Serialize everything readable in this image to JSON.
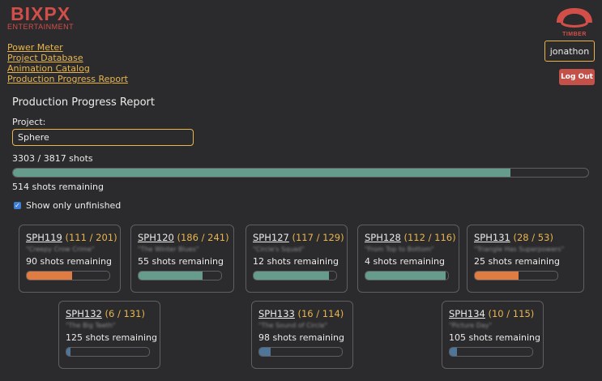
{
  "header": {
    "logo_main": "BIXPX",
    "logo_sub": "ENTERTAINMENT",
    "timber_label": "TIMBER",
    "username": "jonathon",
    "logout_label": "Log Out"
  },
  "nav": {
    "items": [
      {
        "label": "Power Meter"
      },
      {
        "label": "Project Database"
      },
      {
        "label": "Animation Catalog"
      },
      {
        "label": "Production Progress Report"
      }
    ]
  },
  "report": {
    "title": "Production Progress Report",
    "project_label": "Project:",
    "project_value": "Sphere",
    "shots_done": 3303,
    "shots_total": 3817,
    "counts_text": "3303 / 3817 shots",
    "remaining_text": "514 shots remaining",
    "show_unfinished_label": "Show only unfinished",
    "show_unfinished_checked": true
  },
  "colors": {
    "total_fill": "#659c8b",
    "orange": "#e07b41",
    "teal": "#659c8b",
    "blue": "#4f7699",
    "accent": "#e9b64e",
    "logout": "#c4504a"
  },
  "cards": [
    {
      "id": "SPH119",
      "count": "(111 / 201)",
      "subtitle": "\"Creepy Crow Crime\"",
      "remaining": "90 shots remaining",
      "progress": 0.552,
      "color": "#e07b41"
    },
    {
      "id": "SPH120",
      "count": "(186 / 241)",
      "subtitle": "\"The Winter Blues\"",
      "remaining": "55 shots remaining",
      "progress": 0.772,
      "color": "#659c8b"
    },
    {
      "id": "SPH127",
      "count": "(117 / 129)",
      "subtitle": "\"Circle's Squad\"",
      "remaining": "12 shots remaining",
      "progress": 0.907,
      "color": "#659c8b"
    },
    {
      "id": "SPH128",
      "count": "(112 / 116)",
      "subtitle": "\"From Top to Bottom\"",
      "remaining": "4 shots remaining",
      "progress": 0.966,
      "color": "#659c8b"
    },
    {
      "id": "SPH131",
      "count": "(28 / 53)",
      "subtitle": "\"Triangle Has Superpowers\"",
      "remaining": "25 shots remaining",
      "progress": 0.528,
      "color": "#e07b41"
    },
    {
      "id": "SPH132",
      "count": "(6 / 131)",
      "subtitle": "\"The Big Teeth\"",
      "remaining": "125 shots remaining",
      "progress": 0.046,
      "color": "#4f7699"
    },
    {
      "id": "SPH133",
      "count": "(16 / 114)",
      "subtitle": "\"The Sound of Circle\"",
      "remaining": "98 shots remaining",
      "progress": 0.14,
      "color": "#4f7699"
    },
    {
      "id": "SPH134",
      "count": "(10 / 115)",
      "subtitle": "\"Picture Day\"",
      "remaining": "105 shots remaining",
      "progress": 0.087,
      "color": "#4f7699"
    }
  ]
}
